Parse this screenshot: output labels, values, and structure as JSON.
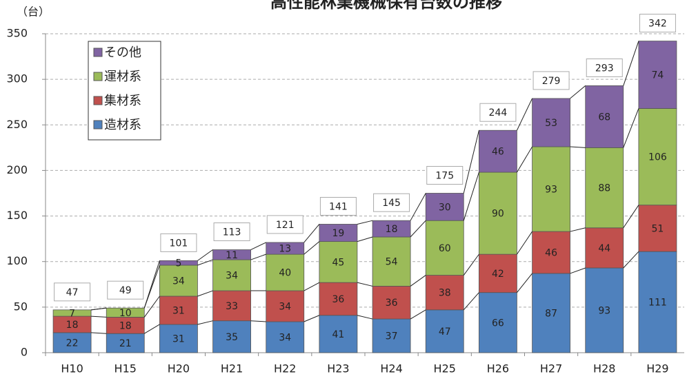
{
  "chart_data": {
    "type": "stacked_bar",
    "title": "高性能林業機械保有台数の推移",
    "y_label": "（台）",
    "categories": [
      "H10",
      "H15",
      "H20",
      "H21",
      "H22",
      "H23",
      "H24",
      "H25",
      "H26",
      "H27",
      "H28",
      "H29"
    ],
    "series": [
      {
        "name": "造材系",
        "color": "#4f81bd",
        "values": [
          22,
          21,
          31,
          35,
          34,
          41,
          37,
          47,
          66,
          87,
          93,
          111
        ]
      },
      {
        "name": "集材系",
        "color": "#c0504d",
        "values": [
          18,
          18,
          31,
          33,
          34,
          36,
          36,
          38,
          42,
          46,
          44,
          51
        ]
      },
      {
        "name": "運材系",
        "color": "#9bbb59",
        "values": [
          7,
          10,
          34,
          34,
          40,
          45,
          54,
          60,
          90,
          93,
          88,
          106
        ]
      },
      {
        "name": "その他",
        "color": "#8064a2",
        "values": [
          null,
          null,
          5,
          11,
          13,
          19,
          18,
          30,
          46,
          53,
          68,
          74
        ]
      }
    ],
    "totals": [
      47,
      49,
      101,
      113,
      121,
      141,
      145,
      175,
      244,
      279,
      293,
      342
    ],
    "ylim": [
      0,
      350
    ],
    "yticks": [
      0,
      50,
      100,
      150,
      200,
      250,
      300,
      350
    ],
    "grid": true
  }
}
